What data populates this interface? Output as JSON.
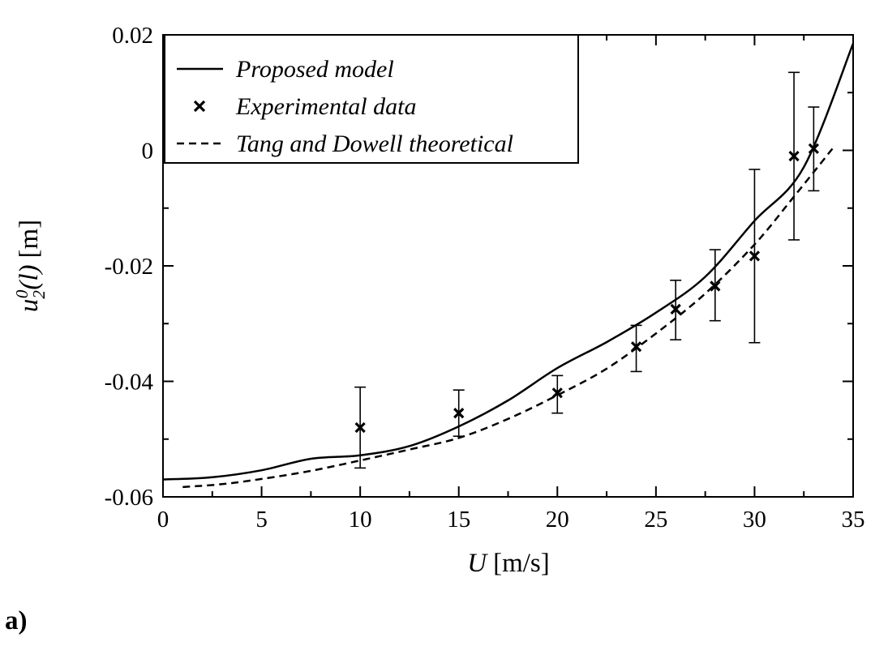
{
  "panel_label": "a)",
  "chart_data": {
    "type": "line",
    "xlabel": {
      "symbol": "U",
      "unit": "[m/s]"
    },
    "ylabel": {
      "symbol": "u",
      "sub": "2",
      "sup": "0",
      "arg": "(l)",
      "unit": "[m]"
    },
    "xlim": [
      0,
      35
    ],
    "ylim": [
      -0.06,
      0.02
    ],
    "x_ticks": [
      0,
      5,
      10,
      15,
      20,
      25,
      30,
      35
    ],
    "x_tick_labels": [
      "0",
      "5",
      "10",
      "15",
      "20",
      "25",
      "30",
      "35"
    ],
    "x_minor_step": 2.5,
    "y_ticks": [
      -0.06,
      -0.04,
      -0.02,
      0,
      0.02
    ],
    "y_tick_labels": [
      "-0.06",
      "-0.04",
      "-0.02",
      "0",
      "0.02"
    ],
    "y_minor_step": 0.01,
    "grid": false,
    "legend_position": "top-left",
    "series": [
      {
        "name": "Proposed model",
        "style": "solid",
        "color": "#000000",
        "x": [
          0,
          2.5,
          5,
          7.5,
          10,
          12.5,
          15,
          17.5,
          20,
          22.5,
          25,
          27.5,
          30,
          32.5,
          35
        ],
        "y": [
          -0.057,
          -0.0566,
          -0.0554,
          -0.0534,
          -0.0528,
          -0.0512,
          -0.0478,
          -0.0433,
          -0.0377,
          -0.0332,
          -0.0281,
          -0.0219,
          -0.0122,
          -0.0029,
          0.0185
        ]
      },
      {
        "name": "Experimental data",
        "style": "marker-x",
        "color": "#000000",
        "x": [
          10,
          15,
          20,
          24,
          26,
          28,
          30,
          32,
          33
        ],
        "y": [
          -0.048,
          -0.0455,
          -0.042,
          -0.034,
          -0.0275,
          -0.0235,
          -0.0183,
          -0.001,
          0.0003
        ],
        "err_low": [
          -0.055,
          -0.0495,
          -0.0455,
          -0.0383,
          -0.0328,
          -0.0295,
          -0.0333,
          -0.0155,
          -0.007
        ],
        "err_high": [
          -0.041,
          -0.0415,
          -0.039,
          -0.0303,
          -0.0225,
          -0.0172,
          -0.0033,
          0.0135,
          0.0075
        ]
      },
      {
        "name": "Tang and Dowell theoretical",
        "style": "dashed",
        "color": "#000000",
        "x": [
          1,
          3,
          5,
          7.5,
          10,
          12.5,
          15,
          17.5,
          20,
          22.5,
          25,
          27.5,
          30,
          32,
          34
        ],
        "y": [
          -0.0583,
          -0.0578,
          -0.0569,
          -0.0555,
          -0.0537,
          -0.0518,
          -0.0498,
          -0.0465,
          -0.0424,
          -0.0378,
          -0.0317,
          -0.0248,
          -0.0163,
          -0.008,
          0.0005
        ]
      }
    ]
  }
}
